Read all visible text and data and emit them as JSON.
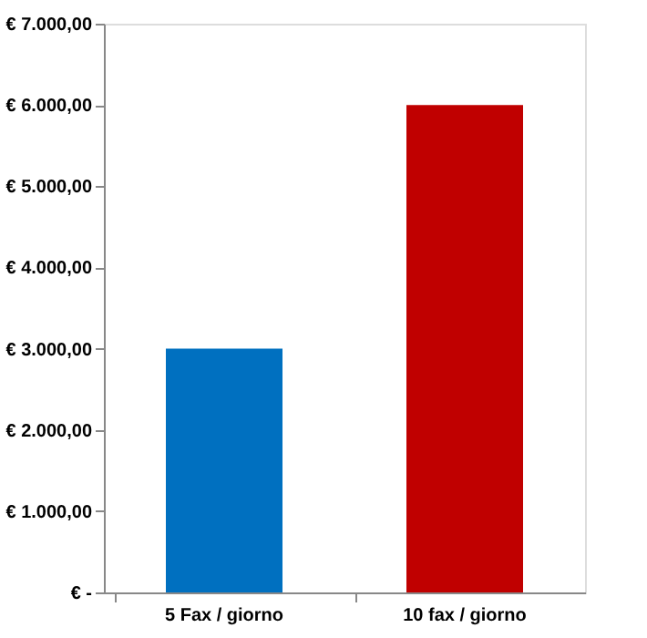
{
  "chart_data": {
    "type": "bar",
    "categories": [
      "5 Fax / giorno",
      "10 fax / giorno"
    ],
    "values": [
      3000,
      6000
    ],
    "colors": [
      "#0070c0",
      "#c00000"
    ],
    "ylim": [
      0,
      7000
    ],
    "yticks": [
      {
        "value": 0,
        "label": "€ -"
      },
      {
        "value": 1000,
        "label": "€ 1.000,00"
      },
      {
        "value": 2000,
        "label": "€ 2.000,00"
      },
      {
        "value": 3000,
        "label": "€ 3.000,00"
      },
      {
        "value": 4000,
        "label": "€ 4.000,00"
      },
      {
        "value": 5000,
        "label": "€ 5.000,00"
      },
      {
        "value": 6000,
        "label": "€ 6.000,00"
      },
      {
        "value": 7000,
        "label": "€ 7.000,00"
      }
    ],
    "grid": false,
    "legend": false
  }
}
